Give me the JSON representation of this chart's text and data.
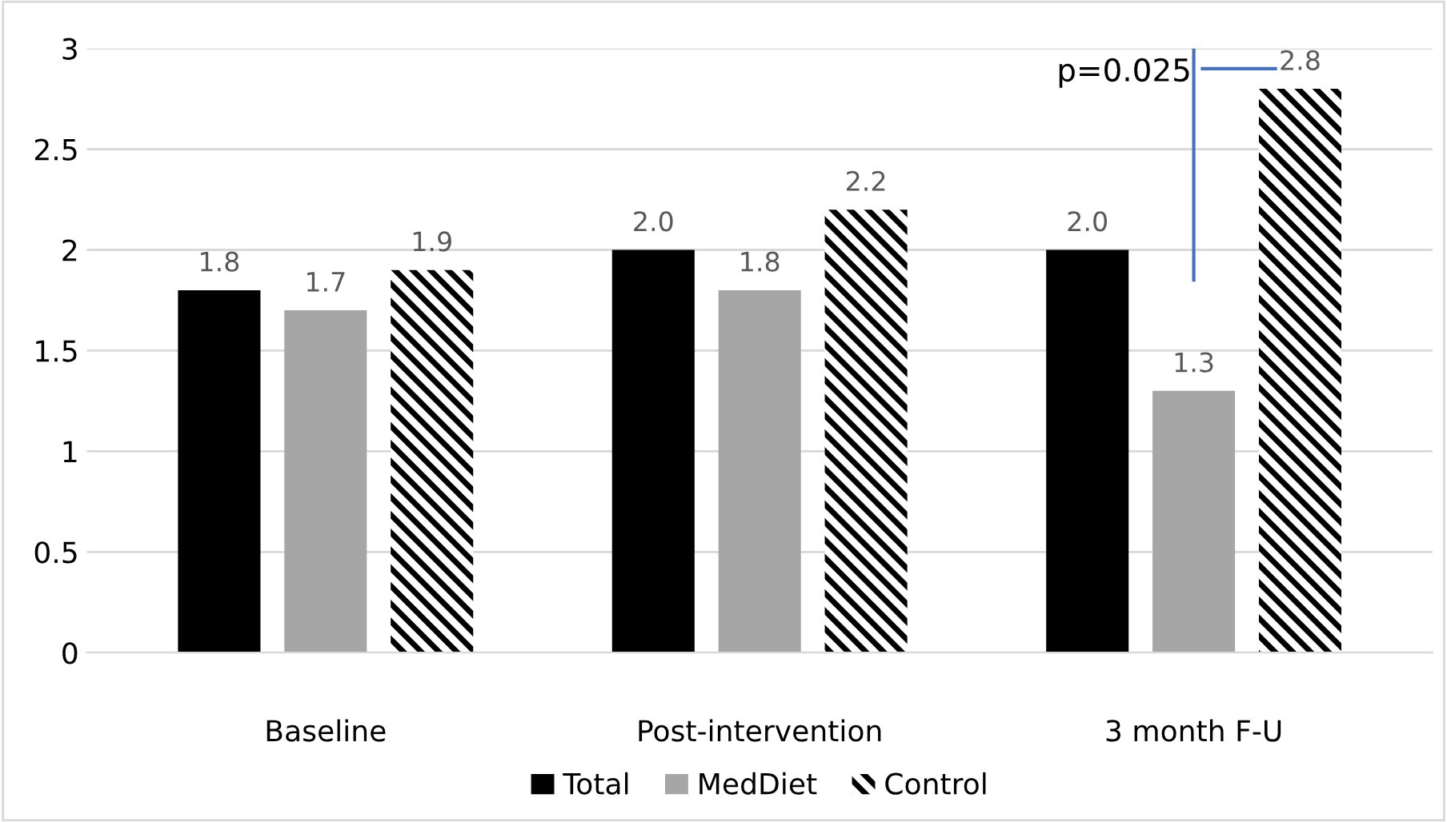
{
  "chart_data": {
    "type": "bar",
    "categories": [
      "Baseline",
      "Post-intervention",
      "3 month F-U"
    ],
    "series": [
      {
        "name": "Total",
        "color": "#000000",
        "values": [
          1.8,
          2.0,
          2.0
        ],
        "value_labels": [
          "1.8",
          "2.0",
          "2.0"
        ]
      },
      {
        "name": "MedDiet",
        "color": "#a6a6a6",
        "values": [
          1.7,
          1.8,
          1.3
        ],
        "value_labels": [
          "1.7",
          "1.8",
          "1.3"
        ]
      },
      {
        "name": "Control",
        "color": "#000000",
        "values": [
          1.9,
          2.2,
          2.8
        ],
        "value_labels": [
          "1.9",
          "2.2",
          "2.8"
        ]
      }
    ],
    "ylim": [
      0,
      3
    ],
    "yticks": [
      0,
      0.5,
      1,
      1.5,
      2,
      2.5,
      3
    ],
    "grid": "y",
    "legend": "bottom",
    "annotations": [
      "p=0.025"
    ]
  }
}
